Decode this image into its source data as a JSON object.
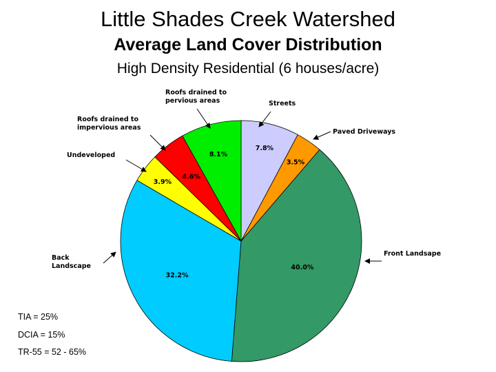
{
  "titles": {
    "main": "Little Shades Creek Watershed",
    "sub": "Average Land Cover Distribution",
    "subsub": "High Density Residential (6 houses/acre)"
  },
  "chart_data": {
    "type": "pie",
    "title": "Average Land Cover Distribution",
    "slices": [
      {
        "label": "Streets",
        "value": 7.8,
        "value_label": "7.8%",
        "color": "#ccccff"
      },
      {
        "label": "Paved Driveways",
        "value": 3.5,
        "value_label": "3.5%",
        "color": "#ff9900"
      },
      {
        "label": "Front Landsape",
        "value": 40.0,
        "value_label": "40.0%",
        "color": "#339966"
      },
      {
        "label": "Back Landscape",
        "value": 32.2,
        "value_label": "32.2%",
        "color": "#00ccff"
      },
      {
        "label": "Undeveloped",
        "value": 3.9,
        "value_label": "3.9%",
        "color": "#ffff00"
      },
      {
        "label": "Roofs drained to impervious areas",
        "value": 4.6,
        "value_label": "4.6%",
        "color": "#ff0000"
      },
      {
        "label": "Roofs drained to pervious areas",
        "value": 8.1,
        "value_label": "8.1%",
        "color": "#00ee00"
      }
    ],
    "legend": "none",
    "labels": "callouts"
  },
  "notes": [
    "TIA = 25%",
    "DCIA = 15%",
    "TR-55 = 52 - 65%"
  ]
}
